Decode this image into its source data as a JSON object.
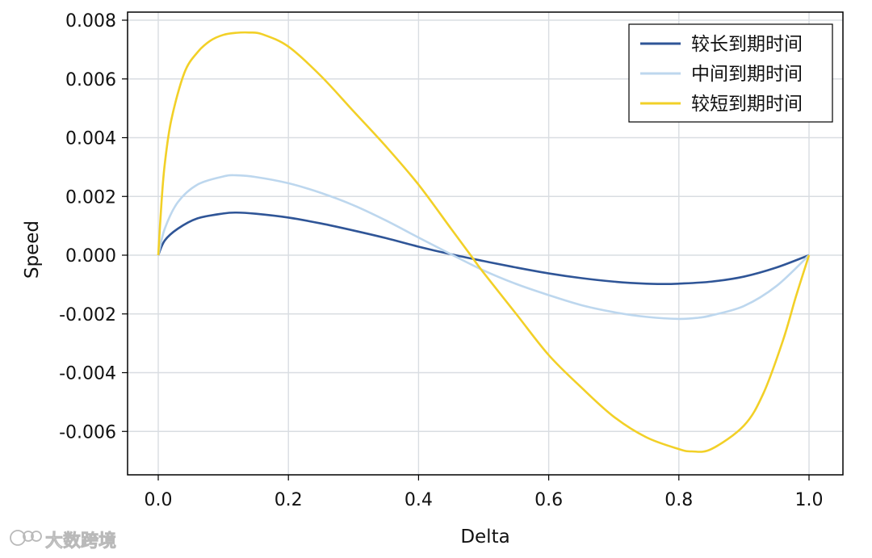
{
  "chart_data": {
    "type": "line",
    "title": "",
    "xlabel": "Delta",
    "ylabel": "Speed",
    "xlim": [
      0.0,
      1.0
    ],
    "ylim": [
      -0.0074,
      0.0082
    ],
    "x_ticks": [
      0.0,
      0.2,
      0.4,
      0.6,
      0.8,
      1.0
    ],
    "x_tick_labels": [
      "0.0",
      "0.2",
      "0.4",
      "0.6",
      "0.8",
      "1.0"
    ],
    "y_ticks": [
      0.008,
      0.006,
      0.004,
      0.002,
      0.0,
      -0.002,
      -0.004,
      -0.006
    ],
    "y_tick_labels": [
      "0.008",
      "0.006",
      "0.004",
      "0.002",
      "0.000",
      "-0.002",
      "-0.004",
      "-0.006"
    ],
    "grid": true,
    "legend_position": "top-right",
    "series": [
      {
        "name": "较长到期时间",
        "color": "#2f5597",
        "x": [
          0.0,
          0.01,
          0.03,
          0.06,
          0.1,
          0.12,
          0.15,
          0.2,
          0.25,
          0.3,
          0.35,
          0.4,
          0.45,
          0.5,
          0.55,
          0.6,
          0.65,
          0.7,
          0.75,
          0.78,
          0.8,
          0.85,
          0.9,
          0.95,
          1.0
        ],
        "y": [
          0.0,
          0.0005,
          0.0009,
          0.00125,
          0.00142,
          0.00145,
          0.00141,
          0.00128,
          0.00108,
          0.00084,
          0.00058,
          0.00029,
          3e-05,
          -0.0002,
          -0.00042,
          -0.00062,
          -0.00078,
          -0.0009,
          -0.00097,
          -0.00098,
          -0.00097,
          -0.0009,
          -0.00073,
          -0.00042,
          0.0
        ]
      },
      {
        "name": "中间到期时间",
        "color": "#bdd7ee",
        "x": [
          0.0,
          0.01,
          0.03,
          0.06,
          0.1,
          0.12,
          0.15,
          0.2,
          0.25,
          0.3,
          0.35,
          0.4,
          0.45,
          0.5,
          0.55,
          0.6,
          0.65,
          0.7,
          0.75,
          0.8,
          0.83,
          0.85,
          0.9,
          0.95,
          1.0
        ],
        "y": [
          0.0,
          0.0009,
          0.0018,
          0.0024,
          0.00268,
          0.00272,
          0.00266,
          0.00245,
          0.00212,
          0.0017,
          0.00118,
          0.0006,
          3e-05,
          -0.00052,
          -0.00098,
          -0.00136,
          -0.0017,
          -0.00194,
          -0.0021,
          -0.00217,
          -0.00213,
          -0.00205,
          -0.00173,
          -0.00105,
          0.0
        ]
      },
      {
        "name": "较短到期时间",
        "color": "#f2d027",
        "x": [
          0.0,
          0.005,
          0.01,
          0.02,
          0.04,
          0.06,
          0.08,
          0.1,
          0.12,
          0.14,
          0.16,
          0.2,
          0.25,
          0.3,
          0.35,
          0.4,
          0.45,
          0.48,
          0.5,
          0.55,
          0.6,
          0.65,
          0.7,
          0.75,
          0.8,
          0.82,
          0.85,
          0.9,
          0.93,
          0.96,
          0.98,
          1.0
        ],
        "y": [
          0.0,
          0.0018,
          0.0031,
          0.0046,
          0.0062,
          0.0069,
          0.0073,
          0.0075,
          0.00757,
          0.00758,
          0.00752,
          0.0071,
          0.0061,
          0.0049,
          0.0037,
          0.0024,
          0.0009,
          0.0,
          -0.0006,
          -0.002,
          -0.0034,
          -0.0045,
          -0.0055,
          -0.0062,
          -0.0066,
          -0.00668,
          -0.0066,
          -0.0058,
          -0.0047,
          -0.0029,
          -0.0014,
          0.0
        ]
      }
    ]
  },
  "watermark": {
    "text": "大数跨境"
  }
}
